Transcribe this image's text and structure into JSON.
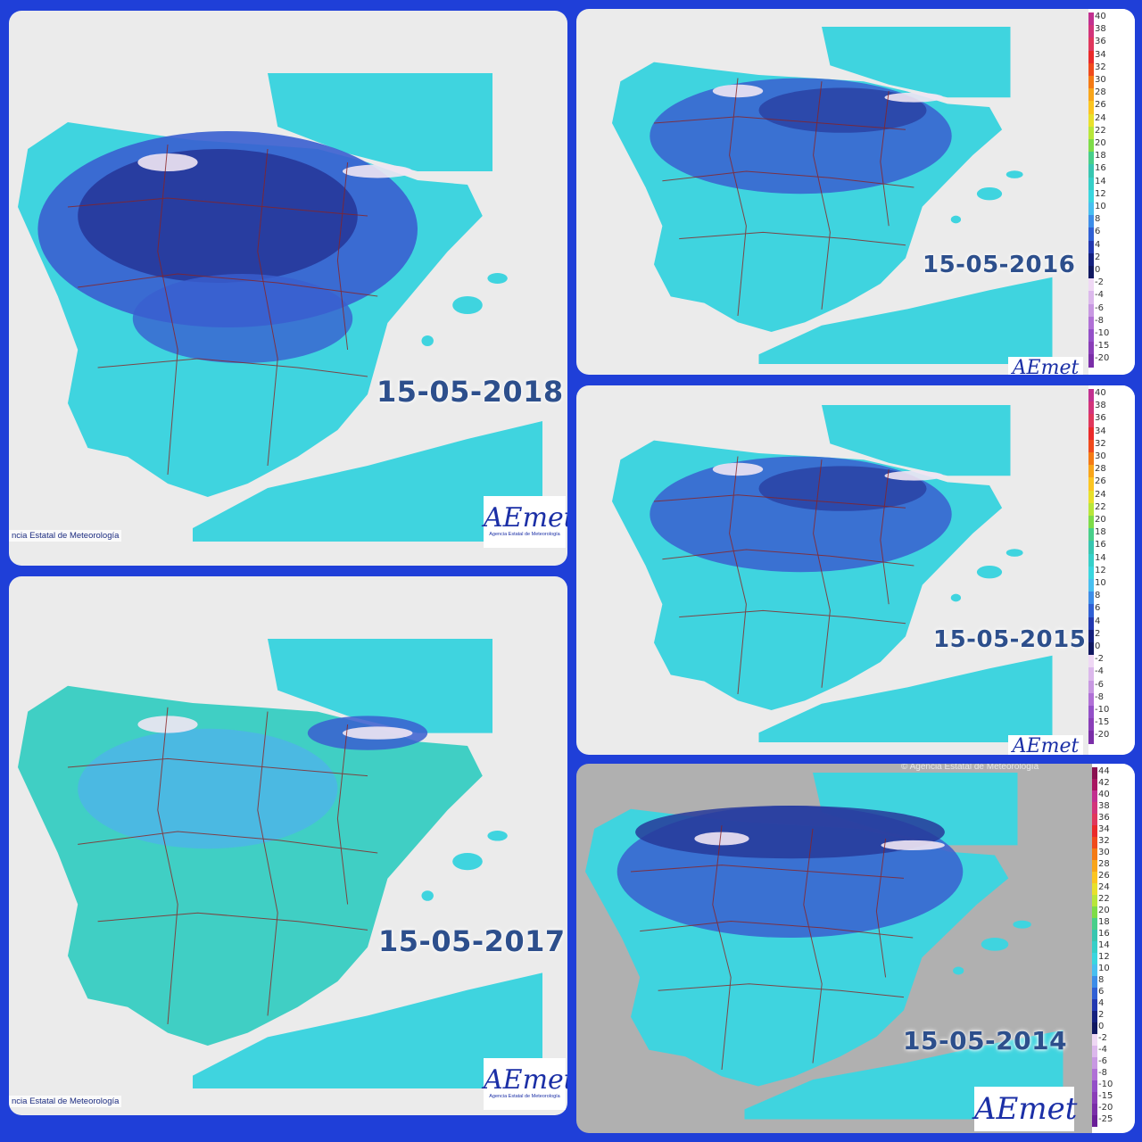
{
  "colors": {
    "background": "#1f3fd8",
    "sea": "#ebebeb",
    "sea_dark": "#bdbdbd",
    "cold_dark": "#27399a",
    "cold_mid": "#3a5fd0",
    "mild": "#4db5e8",
    "cyan": "#3fd4df",
    "teal": "#40cfc4",
    "snow": "#f0e6f3",
    "border": "#8a2222",
    "date_text": "#2d4f8c"
  },
  "panels": [
    {
      "id": "p2018",
      "date": "15-05-2018",
      "credit": "ncia Estatal de Meteorología",
      "logo": "AEmet",
      "logo_sub": "Agencia Estatal de Meteorología",
      "intensity": "very-cold"
    },
    {
      "id": "p2016",
      "date": "15-05-2016",
      "logo": "AEmet",
      "intensity": "cold"
    },
    {
      "id": "p2017",
      "date": "15-05-2017",
      "credit": "ncia Estatal de Meteorología",
      "logo": "AEmet",
      "logo_sub": "Agencia Estatal de Meteorología",
      "intensity": "mild"
    },
    {
      "id": "p2015",
      "date": "15-05-2015",
      "logo": "AEmet",
      "intensity": "cold"
    },
    {
      "id": "p2014",
      "date": "15-05-2014",
      "credit_top": "© Agencia Estatal de Meteorología",
      "logo": "AEmet",
      "intensity": "cold-north"
    }
  ],
  "legend_small": {
    "labels": [
      "40",
      "38",
      "36",
      "34",
      "32",
      "30",
      "28",
      "26",
      "24",
      "22",
      "20",
      "18",
      "16",
      "14",
      "12",
      "10",
      "8",
      "6",
      "4",
      "2",
      "0",
      "-2",
      "-4",
      "-6",
      "-8",
      "-10",
      "-15",
      "-20"
    ],
    "colors": [
      "#c2308f",
      "#d2347a",
      "#e0375c",
      "#ea2a2a",
      "#f04a1c",
      "#f47a14",
      "#f8a51a",
      "#fbc522",
      "#e8e02c",
      "#b8e63a",
      "#7edc48",
      "#48cf8a",
      "#38c6b0",
      "#36cfc8",
      "#3ad6df",
      "#48bff0",
      "#3d8de8",
      "#2f5fd4",
      "#2238b0",
      "#14207e",
      "#101860",
      "#efd8f4",
      "#dcb8ec",
      "#c898e2",
      "#b070d6",
      "#9450c8",
      "#8a3eb8",
      "#7a2ea8"
    ]
  },
  "legend_large": {
    "labels": [
      "44",
      "42",
      "40",
      "38",
      "36",
      "34",
      "32",
      "30",
      "28",
      "26",
      "24",
      "22",
      "20",
      "18",
      "16",
      "14",
      "12",
      "10",
      "8",
      "6",
      "4",
      "2",
      "0",
      "-2",
      "-4",
      "-6",
      "-8",
      "-10",
      "-15",
      "-20",
      "-25"
    ],
    "colors": [
      "#8a1050",
      "#a81660",
      "#c2308f",
      "#d2347a",
      "#e0375c",
      "#ea2a2a",
      "#f04a1c",
      "#f47a14",
      "#f8a51a",
      "#fbc522",
      "#e8e02c",
      "#b8e63a",
      "#7edc48",
      "#48cf8a",
      "#38c6b0",
      "#36cfc8",
      "#3ad6df",
      "#48bff0",
      "#3d8de8",
      "#2f5fd4",
      "#2238b0",
      "#14207e",
      "#101860",
      "#efd8f4",
      "#dcb8ec",
      "#c898e2",
      "#b070d6",
      "#9450c8",
      "#8a3eb8",
      "#7a2ea8",
      "#6a1e98"
    ]
  }
}
